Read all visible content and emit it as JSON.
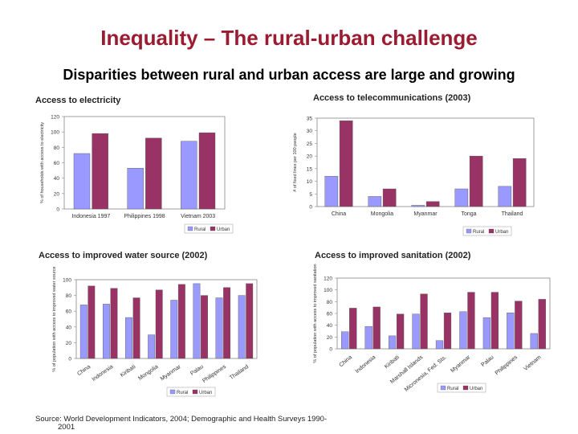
{
  "slide": {
    "title": "Inequality – The rural-urban challenge",
    "subtitle": "Disparities between rural and urban access are large and growing",
    "source_line1": "Source: World Development Indicators, 2004; Demographic and Health Surveys 1990-",
    "source_line2": "2001"
  },
  "colors": {
    "rural": "#9999ff",
    "urban": "#993366"
  },
  "chart_data": [
    {
      "type": "bar",
      "title": "Access to electricity",
      "ylabel": "% of households with access to electricity",
      "categories": [
        "Indonesia 1997",
        "Philippines 1998",
        "Vietnam 2003"
      ],
      "series": [
        {
          "name": "Rural",
          "values": [
            72,
            53,
            88
          ]
        },
        {
          "name": "Urban",
          "values": [
            98,
            92,
            99
          ]
        }
      ],
      "ylim": [
        0,
        120
      ],
      "yticks": [
        "0",
        "20",
        "40",
        "60",
        "80",
        "100",
        "120"
      ],
      "legend": "bottom-right"
    },
    {
      "type": "bar",
      "title": "Access to telecommunications (2003)",
      "ylabel": "# of fixed lines per 100 people",
      "categories": [
        "China",
        "Mongolia",
        "Myanmar",
        "Tonga",
        "Thailand"
      ],
      "series": [
        {
          "name": "Rural",
          "values": [
            12,
            4,
            0.5,
            7,
            8
          ]
        },
        {
          "name": "Urban",
          "values": [
            34,
            7,
            2,
            20,
            19
          ]
        }
      ],
      "ylim": [
        0,
        35
      ],
      "yticks": [
        "0",
        "5",
        "10",
        "15",
        "20",
        "25",
        "30",
        "35"
      ],
      "legend": "bottom-right"
    },
    {
      "type": "bar",
      "title": "Access to improved water source (2002)",
      "ylabel": "% of population with access to improved water source",
      "categories": [
        "China",
        "Indonesia",
        "Kiribati",
        "Mongolia",
        "Myanmar",
        "Palau",
        "Philippines",
        "Thailand"
      ],
      "series": [
        {
          "name": "Rural",
          "values": [
            68,
            69,
            52,
            30,
            74,
            95,
            77,
            80
          ]
        },
        {
          "name": "Urban",
          "values": [
            92,
            89,
            77,
            87,
            94,
            80,
            90,
            95
          ]
        }
      ],
      "ylim": [
        0,
        100
      ],
      "yticks": [
        "0",
        "20",
        "40",
        "60",
        "80",
        "100"
      ],
      "legend": "bottom-center"
    },
    {
      "type": "bar",
      "title": "Access to improved sanitation (2002)",
      "ylabel": "% of population with access to improved sanitation",
      "categories": [
        "China",
        "Indonesia",
        "Kiribati",
        "Marshall Islands",
        "Micronesia, Fed. Sts.",
        "Myanmar",
        "Palau",
        "Philippines",
        "Vietnam"
      ],
      "series": [
        {
          "name": "Rural",
          "values": [
            29,
            38,
            22,
            59,
            14,
            63,
            53,
            61,
            26
          ]
        },
        {
          "name": "Urban",
          "values": [
            69,
            71,
            59,
            93,
            61,
            96,
            96,
            81,
            84
          ]
        }
      ],
      "ylim": [
        0,
        120
      ],
      "yticks": [
        "0",
        "20",
        "40",
        "60",
        "80",
        "100",
        "120"
      ],
      "legend": "bottom-right"
    }
  ]
}
